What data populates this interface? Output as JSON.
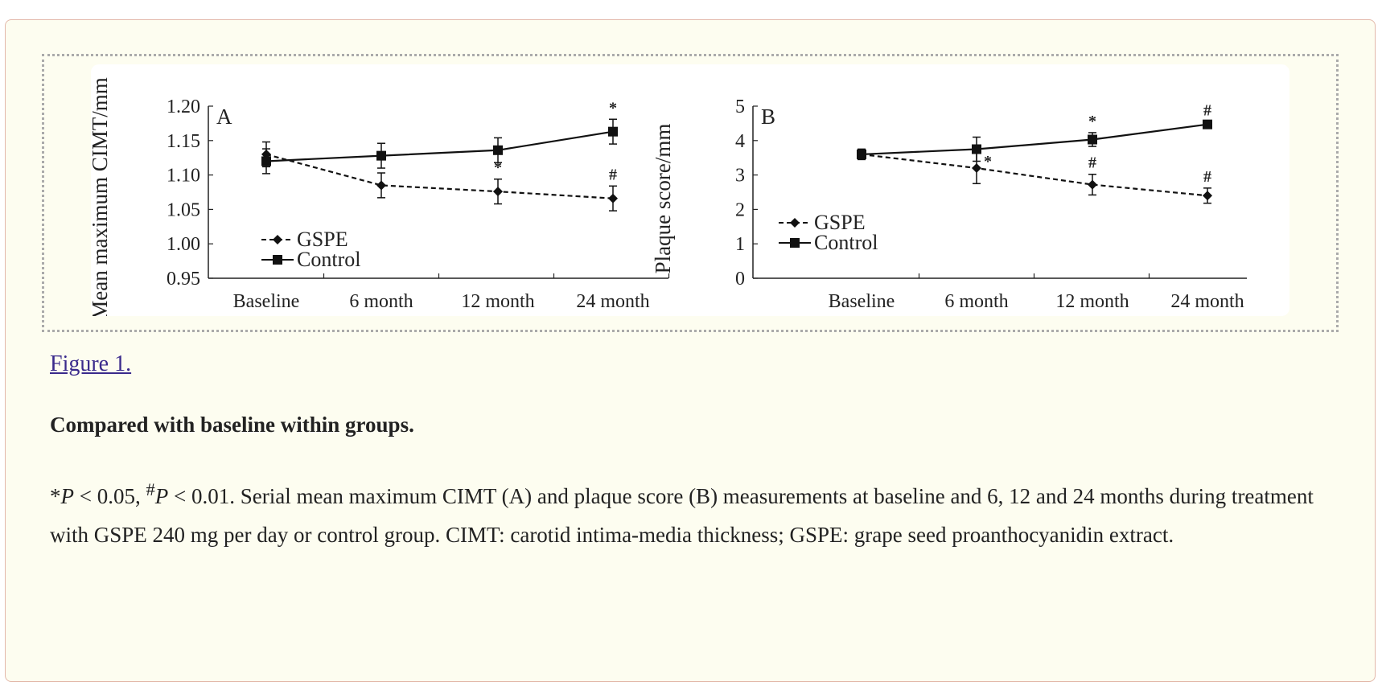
{
  "figure_link": "Figure 1.",
  "subtitle": "Compared with baseline within groups.",
  "caption": {
    "star": "*",
    "p": "P",
    "lt005": " < 0.05, ",
    "hash": "#",
    "lt001": " < 0.01. ",
    "text": "Serial mean maximum CIMT (A) and plaque score (B) measurements at baseline and 6, 12 and 24 months during treatment with GSPE 240 mg per day or control group. CIMT: carotid intima-media thickness; GSPE: grape seed proanthocyanidin extract."
  },
  "chart_data": [
    {
      "type": "line",
      "panel_label": "A",
      "ylabel": "Mean maximum CIMT/mm",
      "xlabel": "",
      "categories": [
        "Baseline",
        "6 month",
        "12 month",
        "24 month"
      ],
      "ylim": [
        0.95,
        1.2
      ],
      "yticks": [
        "0.95",
        "1.00",
        "1.05",
        "1.10",
        "1.15",
        "1.20"
      ],
      "grid": false,
      "legend": "bottom-left",
      "series": [
        {
          "name": "GSPE",
          "style": "dashed",
          "marker": "diamond",
          "values": [
            1.13,
            1.085,
            1.076,
            1.066
          ],
          "errors": [
            0.018,
            0.018,
            0.018,
            0.018
          ],
          "annotations": [
            "",
            "",
            "*",
            "#"
          ]
        },
        {
          "name": "Control",
          "style": "solid",
          "marker": "square",
          "values": [
            1.12,
            1.128,
            1.136,
            1.163
          ],
          "errors": [
            0.018,
            0.018,
            0.018,
            0.018
          ],
          "annotations": [
            "",
            "",
            "",
            "*"
          ]
        }
      ]
    },
    {
      "type": "line",
      "panel_label": "B",
      "ylabel": "Plaque score/mm",
      "xlabel": "",
      "categories": [
        "Baseline",
        "6 month",
        "12 month",
        "24 month"
      ],
      "ylim": [
        0,
        5
      ],
      "yticks": [
        "0",
        "1",
        "2",
        "3",
        "4",
        "5"
      ],
      "grid": false,
      "legend": "bottom-left",
      "series": [
        {
          "name": "GSPE",
          "style": "dashed",
          "marker": "diamond",
          "values": [
            3.6,
            3.2,
            2.72,
            2.4
          ],
          "errors": [
            0.15,
            0.45,
            0.3,
            0.22
          ],
          "annotations": [
            "",
            "*",
            "#",
            "#"
          ]
        },
        {
          "name": "Control",
          "style": "solid",
          "marker": "square",
          "values": [
            3.6,
            3.75,
            4.03,
            4.47
          ],
          "errors": [
            0.15,
            0.35,
            0.2,
            0.08
          ],
          "annotations": [
            "",
            "",
            "*",
            "#"
          ]
        }
      ]
    }
  ]
}
